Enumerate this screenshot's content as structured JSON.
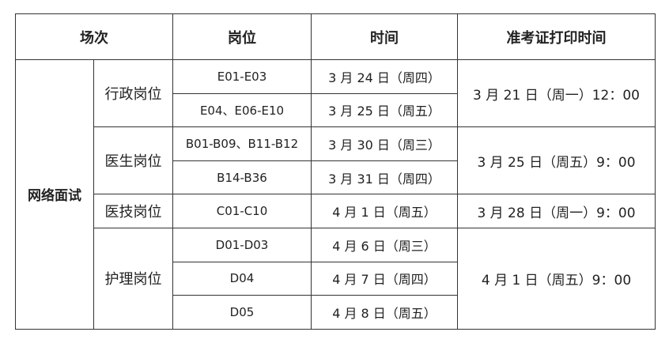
{
  "headers": [
    "场次",
    "岗位",
    "时间",
    "准考证打印时间"
  ],
  "session": "网络面试",
  "groups": [
    {
      "category": "行政岗位",
      "print_time": "3 月 21 日（周一）12：00",
      "rows": [
        {
          "code": "E01-E03",
          "time": "3 月 24 日（周四）"
        },
        {
          "code": "E04、E06-E10",
          "time": "3 月 25 日（周五）"
        }
      ]
    },
    {
      "category": "医生岗位",
      "print_time": "3 月 25 日（周五）9：00",
      "rows": [
        {
          "code": "B01-B09、B11-B12",
          "time": "3 月 30 日（周三）"
        },
        {
          "code": "B14-B36",
          "time": "3 月 31 日（周四）"
        }
      ]
    },
    {
      "category": "医技岗位",
      "print_time": "3 月 28 日（周一）9：00",
      "rows": [
        {
          "code": "C01-C10",
          "time": "4 月 1 日（周五）"
        }
      ]
    },
    {
      "category": "护理岗位",
      "print_time": "4 月 1 日（周五）9：00",
      "rows": [
        {
          "code": "D01-D03",
          "time": "4 月 6 日（周三）"
        },
        {
          "code": "D04",
          "time": "4 月 7 日（周四）"
        },
        {
          "code": "D05",
          "time": "4 月 8 日（周五）"
        }
      ]
    }
  ]
}
